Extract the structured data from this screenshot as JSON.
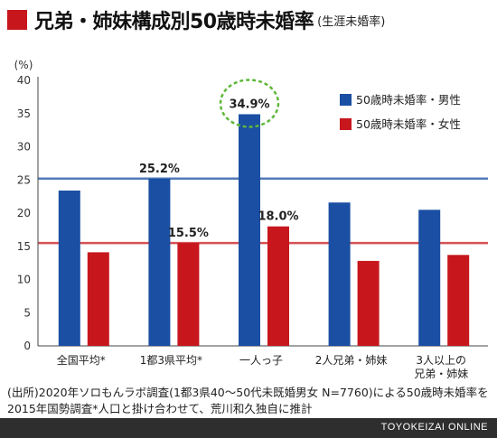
{
  "header": {
    "title": "兄弟・姉妹構成別50歳時未婚率",
    "subtitle": "(生涯未婚率)"
  },
  "chart_data": {
    "type": "bar",
    "unit_label": "(%)",
    "ylim": [
      0,
      40
    ],
    "yticks": [
      0,
      5,
      10,
      15,
      20,
      25,
      30,
      35,
      40
    ],
    "categories": [
      [
        "全国平均*"
      ],
      [
        "1都3県平均*"
      ],
      [
        "一人っ子"
      ],
      [
        "2人兄弟・姉妹"
      ],
      [
        "3人以上の",
        "兄弟・姉妹"
      ]
    ],
    "series": [
      {
        "name": "50歳時未婚率・男性",
        "color": "#1a4fa3",
        "values": [
          23.4,
          25.2,
          34.9,
          21.6,
          20.5
        ]
      },
      {
        "name": "50歳時未婚率・女性",
        "color": "#c8161d",
        "values": [
          14.1,
          15.5,
          18.0,
          12.8,
          13.7
        ]
      }
    ],
    "reference_lines": [
      {
        "value": 25.2,
        "color": "#1a4fa3"
      },
      {
        "value": 15.5,
        "color": "#c8161d"
      }
    ],
    "data_labels": [
      {
        "series": 0,
        "index": 1,
        "text": "25.2%"
      },
      {
        "series": 1,
        "index": 1,
        "text": "15.5%"
      },
      {
        "series": 0,
        "index": 2,
        "text": "34.9%"
      },
      {
        "series": 1,
        "index": 2,
        "text": "18.0%"
      }
    ],
    "highlight": {
      "series": 0,
      "index": 2,
      "color": "#5fb83a"
    },
    "legend_position": "top-right",
    "grid": false
  },
  "footnote": "(出所)2020年ソロもんラボ調査(1都3県40〜50代未既婚男女 N=7760)による50歳時未婚率を2015年国勢調査*人口と掛け合わせて、荒川和久独自に推計",
  "footer": {
    "credit": "TOYOKEIZAI ONLINE",
    "bar_color": "#2e2e2e"
  }
}
